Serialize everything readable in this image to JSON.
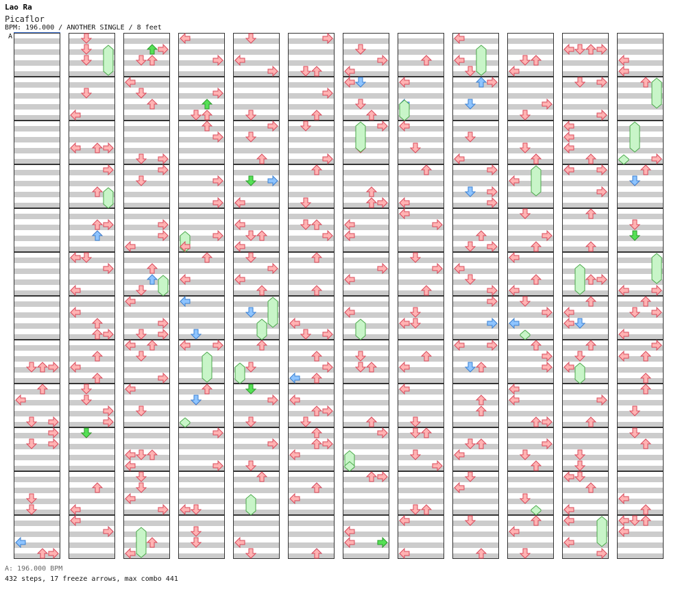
{
  "header": {
    "artist": "Lao Ra",
    "title": "Picaflor",
    "info": "BPM: 196.000 / ANOTHER SINGLE / 8 feet"
  },
  "bpm_marker": "A",
  "footer": {
    "bpm_line": "A: 196.000 BPM",
    "stats": "432 steps, 17 freeze arrows, max combo 441"
  },
  "colors": {
    "arrow": "#ffb3b3",
    "arrow_stroke": "#d9485a",
    "special": "#8ec4ff",
    "special_stroke": "#3a7fd0",
    "green": "#55e055",
    "freeze": "#c8f5c8",
    "freeze_stroke": "#4aa84a",
    "stripe": "#cccccc"
  },
  "chart_data": {
    "type": "step-chart",
    "columns": 12,
    "measures_per_column": 12,
    "lanes": [
      "left",
      "down",
      "up",
      "right"
    ]
  }
}
